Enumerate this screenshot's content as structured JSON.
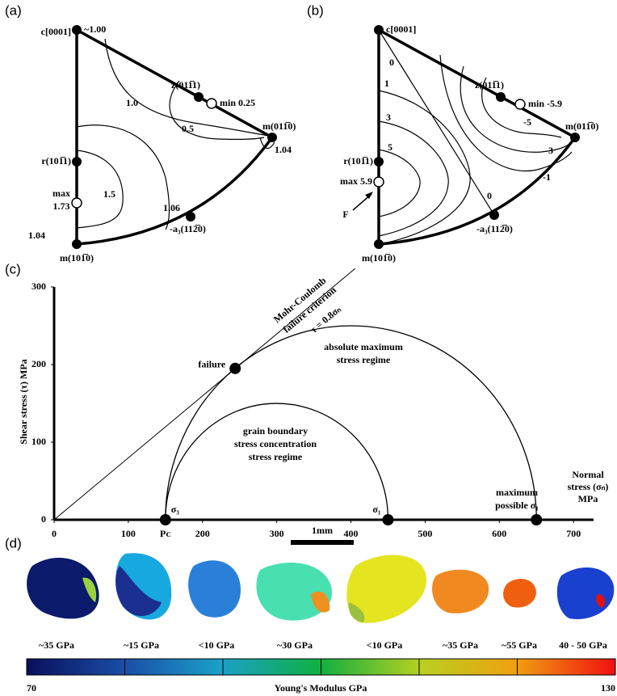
{
  "panel_a": {
    "label": "(a)",
    "poles": [
      "c[0001]",
      "z(011̅1)",
      "m(011̅0)",
      "r(101̅1)",
      "m(101̅0)",
      "-a₃(112̅0)"
    ],
    "contour_labels": [
      "~1.00",
      "1.0",
      "0.5",
      "1.5",
      "1.06",
      "1.04",
      "1.04"
    ],
    "min": "min 0.25",
    "max": [
      "max",
      "1.73"
    ]
  },
  "panel_b": {
    "label": "(b)",
    "poles": [
      "c[0001]",
      "z(011̅1)",
      "m(011̅0)",
      "r(101̅1)",
      "m(101̅0)",
      "-a₃(112̅0)"
    ],
    "contour_labels": [
      "0",
      "1",
      "3",
      "5",
      "0",
      "-5",
      "-3",
      "-1"
    ],
    "min": "min -5.9",
    "max": "max 5.9",
    "marker": "F"
  },
  "chart_data": {
    "type": "mohr",
    "label": "(c)",
    "ylabel": "Shear stress (τ) MPa",
    "xlabel": [
      "Normal",
      "stress (σₙ)",
      "MPa"
    ],
    "criterion": [
      "Mohr-Coulomb",
      "failure criterion"
    ],
    "criterion_eq": "τ = 0.8σₙ",
    "regimes": [
      [
        "absolute maximum",
        "stress regime"
      ],
      [
        "grain boundary",
        "stress concentration",
        "stress regime"
      ]
    ],
    "max_sigma": [
      "maximum",
      "possible σ₁"
    ],
    "xlim": [
      0,
      727
    ],
    "ylim": [
      0,
      300
    ],
    "xticks": [
      0,
      100,
      200,
      300,
      400,
      500,
      600,
      700
    ],
    "yticks": [
      0,
      100,
      200,
      300
    ],
    "circles": [
      {
        "from": 150,
        "to": 450
      },
      {
        "from": 150,
        "to": 650
      }
    ],
    "stress_labels": [
      "σ₃",
      "σ₁",
      "Pᴄ"
    ],
    "failure": {
      "name": "failure",
      "x": 244,
      "y": 195
    }
  },
  "panel_d": {
    "label": "(d)",
    "scale_bar": "1mm",
    "grains": [
      "~35 GPa",
      "~15 GPa",
      "<10 GPa",
      "~30 GPa",
      "<10 GPa",
      "~35 GPa",
      "~55 GPa",
      "40 - 50 GPa"
    ],
    "colorbar": {
      "min": 70,
      "max": 130,
      "ticks": [
        80,
        90,
        100,
        110,
        120
      ],
      "label": "Young's Modulus GPa"
    }
  }
}
